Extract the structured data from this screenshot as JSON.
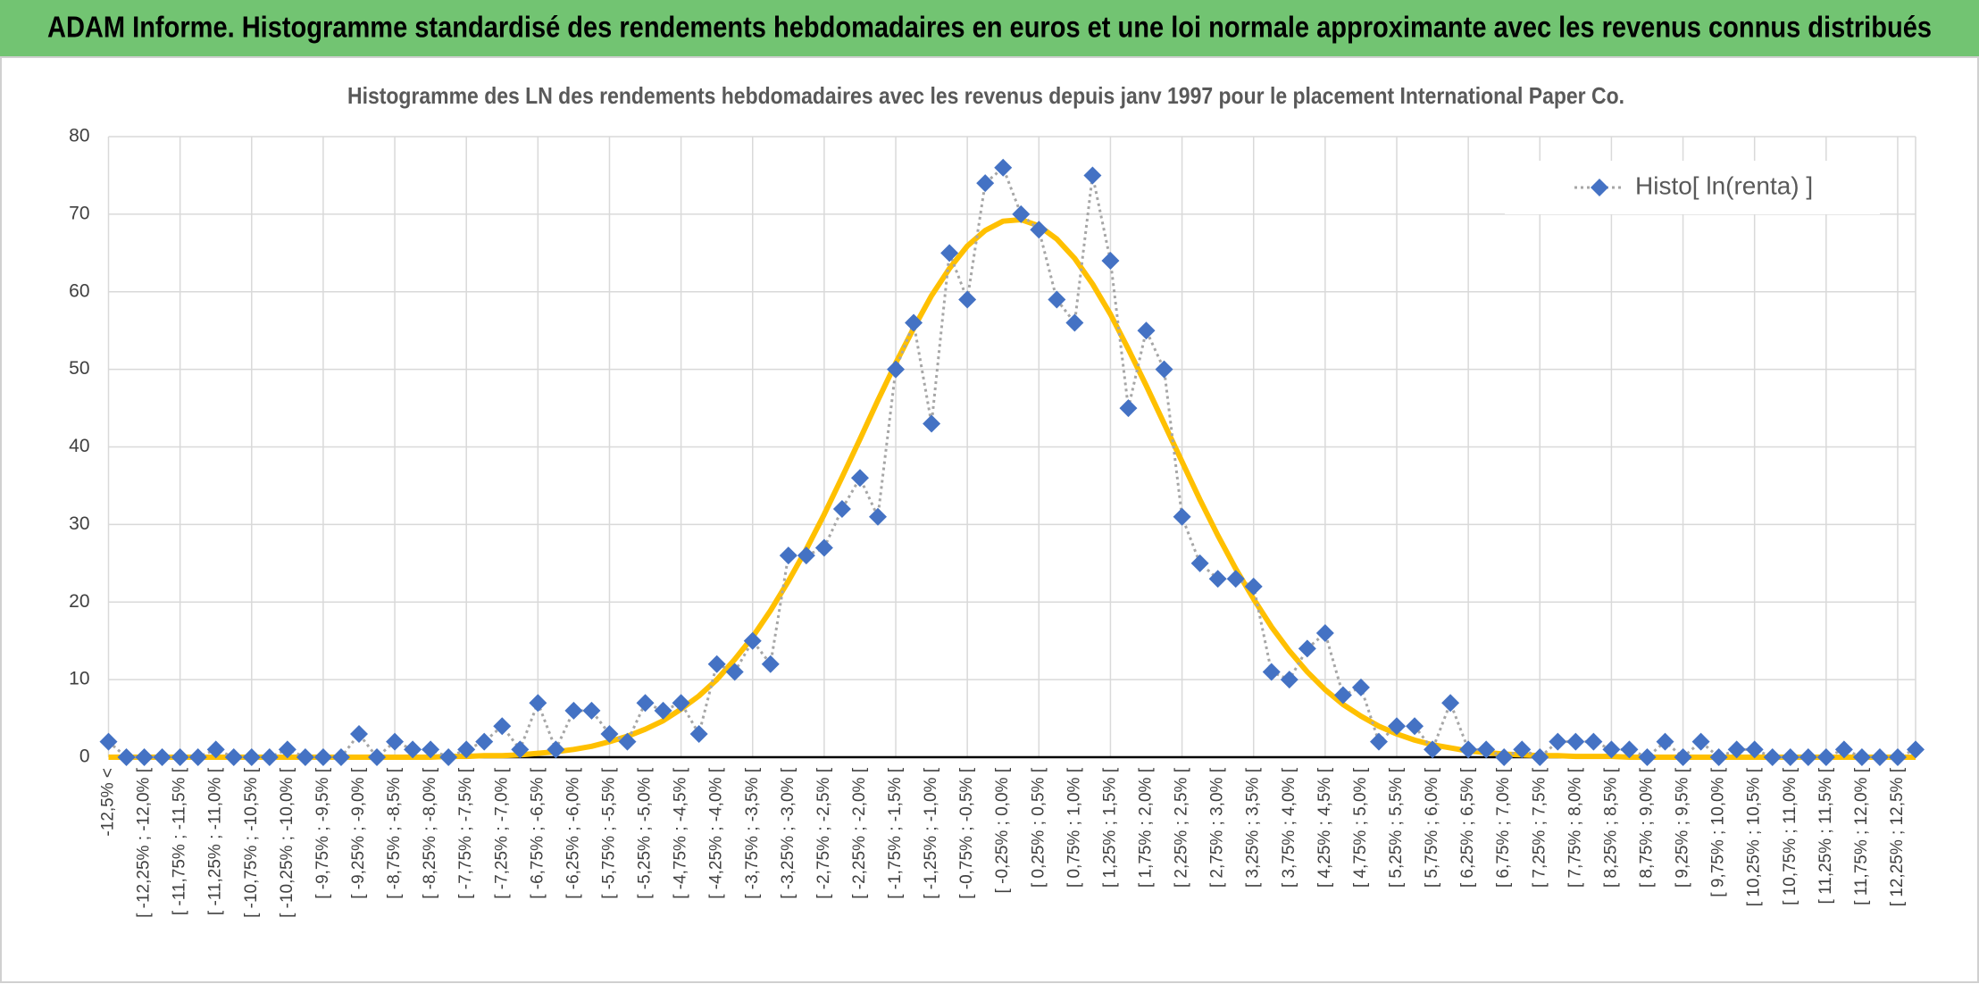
{
  "banner": "ADAM Informe. Histogramme standardisé des rendements hebdomadaires en euros et une loi normale approximante avec les revenus connus distribués",
  "chart_data": {
    "type": "line",
    "title": "Histogramme des LN des rendements hebdomadaires avec les revenus depuis janv 1997 pour le placement International Paper Co.",
    "categories": [
      "-12,5% <",
      null,
      "[ -12,25% ; -12,0% [",
      null,
      "[ -11,75% ; -11,5% [",
      null,
      "[ -11,25% ; -11,0% [",
      null,
      "[ -10,75% ; -10,5% [",
      null,
      "[ -10,25% ; -10,0% [",
      null,
      "[ -9,75% ; -9,5% [",
      null,
      "[ -9,25% ; -9,0% [",
      null,
      "[ -8,75% ; -8,5% [",
      null,
      "[ -8,25% ; -8,0% [",
      null,
      "[ -7,75% ; -7,5% [",
      null,
      "[ -7,25% ; -7,0% [",
      null,
      "[ -6,75% ; -6,5% [",
      null,
      "[ -6,25% ; -6,0% [",
      null,
      "[ -5,75% ; -5,5% [",
      null,
      "[ -5,25% ; -5,0% [",
      null,
      "[ -4,75% ; -4,5% [",
      null,
      "[ -4,25% ; -4,0% [",
      null,
      "[ -3,75% ; -3,5% [",
      null,
      "[ -3,25% ; -3,0% [",
      null,
      "[ -2,75% ; -2,5% [",
      null,
      "[ -2,25% ; -2,0% [",
      null,
      "[ -1,75% ; -1,5% [",
      null,
      "[ -1,25% ; -1,0% [",
      null,
      "[ -0,75% ; -0,5% [",
      null,
      "[ -0,25% ; 0,0% [",
      null,
      "[ 0,25% ; 0,5% [",
      null,
      "[ 0,75% ; 1,0% [",
      null,
      "[ 1,25% ; 1,5% [",
      null,
      "[ 1,75% ; 2,0% [",
      null,
      "[ 2,25% ; 2,5% [",
      null,
      "[ 2,75% ; 3,0% [",
      null,
      "[ 3,25% ; 3,5% [",
      null,
      "[ 3,75% ; 4,0% [",
      null,
      "[ 4,25% ; 4,5% [",
      null,
      "[ 4,75% ; 5,0% [",
      null,
      "[ 5,25% ; 5,5% [",
      null,
      "[ 5,75% ; 6,0% [",
      null,
      "[ 6,25% ; 6,5% [",
      null,
      "[ 6,75% ; 7,0% [",
      null,
      "[ 7,25% ; 7,5% [",
      null,
      "[ 7,75% ; 8,0% [",
      null,
      "[ 8,25% ; 8,5% [",
      null,
      "[ 8,75% ; 9,0% [",
      null,
      "[ 9,25% ; 9,5% [",
      null,
      "[ 9,75% ; 10,0% [",
      null,
      "[ 10,25% ; 10,5% [",
      null,
      "[ 10,75% ; 11,0% [",
      null,
      "[ 11,25% ; 11,5% [",
      null,
      "[ 11,75% ; 12,0% [",
      null,
      "[ 12,25% ; 12,5% [",
      null
    ],
    "series": [
      {
        "name": "Histo[ ln(renta) ]",
        "color": "#4472c4",
        "line_color": "#a6a6a6",
        "line_style": "dotted",
        "marker": "diamond",
        "values": [
          2,
          0,
          0,
          0,
          0,
          0,
          1,
          0,
          0,
          0,
          1,
          0,
          0,
          0,
          3,
          0,
          2,
          1,
          1,
          0,
          1,
          2,
          4,
          1,
          7,
          1,
          6,
          6,
          3,
          2,
          7,
          6,
          7,
          3,
          12,
          11,
          15,
          12,
          26,
          26,
          27,
          32,
          36,
          31,
          50,
          56,
          43,
          65,
          59,
          74,
          76,
          70,
          68,
          59,
          56,
          75,
          64,
          45,
          55,
          50,
          31,
          25,
          23,
          23,
          22,
          11,
          10,
          14,
          16,
          8,
          9,
          2,
          4,
          4,
          1,
          7,
          1,
          1,
          0,
          1,
          0,
          2,
          2,
          2,
          1,
          1,
          0,
          2,
          0,
          2,
          0,
          1,
          1,
          0,
          0,
          0,
          0,
          1,
          0,
          0,
          0,
          1
        ]
      },
      {
        "color": "#ffc000",
        "line_style": "solid",
        "marker": "none",
        "values": [
          0,
          0,
          0,
          0,
          0,
          0,
          0,
          0,
          0,
          0,
          0,
          0,
          0,
          0,
          0,
          0,
          0,
          0,
          0,
          0.1,
          0.1,
          0.2,
          0.2,
          0.3,
          0.5,
          0.7,
          1.0,
          1.4,
          2.0,
          2.7,
          3.6,
          4.7,
          6.2,
          7.9,
          10.0,
          12.6,
          15.5,
          18.9,
          22.7,
          26.8,
          31.3,
          36.1,
          41.0,
          46.0,
          50.8,
          55.3,
          59.5,
          63.0,
          65.9,
          67.9,
          69.1,
          69.3,
          68.5,
          66.8,
          64.3,
          61.0,
          57.1,
          52.6,
          47.9,
          43.0,
          38.1,
          33.2,
          28.6,
          24.3,
          20.4,
          16.8,
          13.7,
          11.0,
          8.7,
          6.8,
          5.3,
          4.0,
          3.0,
          2.2,
          1.6,
          1.2,
          0.8,
          0.6,
          0.4,
          0.3,
          0.2,
          0.2,
          0.1,
          0.1,
          0.1,
          0,
          0,
          0,
          0,
          0,
          0,
          0,
          0,
          0,
          0,
          0,
          0,
          0,
          0,
          0,
          0,
          0
        ]
      }
    ],
    "ylim": [
      0,
      80
    ],
    "yticks": [
      0,
      10,
      20,
      30,
      40,
      50,
      60,
      70,
      80
    ],
    "grid": true,
    "legend": "upper right"
  }
}
